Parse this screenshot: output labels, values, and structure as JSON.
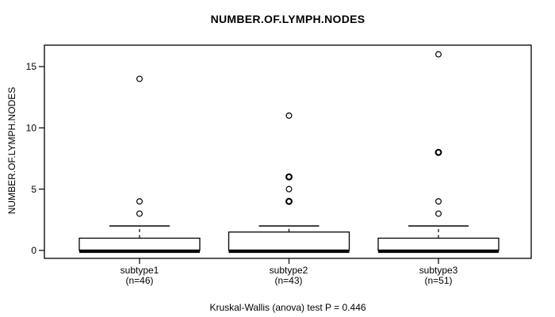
{
  "chart_data": {
    "type": "boxplot",
    "title": "NUMBER.OF.LYMPH.NODES",
    "ylabel": "NUMBER.OF.LYMPH.NODES",
    "caption": "Kruskal-Wallis (anova) test P = 0.446",
    "yticks": [
      0,
      5,
      10,
      15
    ],
    "ylim": [
      -0.6,
      16.7
    ],
    "grid": false,
    "legend": "none",
    "groups": [
      {
        "label": "subtype1",
        "n_label": "(n=46)",
        "n": 46,
        "stats": {
          "min": 0,
          "q1": 0,
          "median": 0,
          "q3": 1,
          "whisker_high": 2
        },
        "outliers": [
          {
            "value": 3
          },
          {
            "value": 4
          },
          {
            "value": 14
          }
        ]
      },
      {
        "label": "subtype2",
        "n_label": "(n=43)",
        "n": 43,
        "stats": {
          "min": 0,
          "q1": 0,
          "median": 0,
          "q3": 1.5,
          "whisker_high": 2
        },
        "outliers": [
          {
            "value": 4,
            "bold": true
          },
          {
            "value": 5
          },
          {
            "value": 6,
            "bold": true
          },
          {
            "value": 11
          }
        ]
      },
      {
        "label": "subtype3",
        "n_label": "(n=51)",
        "n": 51,
        "stats": {
          "min": 0,
          "q1": 0,
          "median": 0,
          "q3": 1,
          "whisker_high": 2
        },
        "outliers": [
          {
            "value": 3
          },
          {
            "value": 4
          },
          {
            "value": 8,
            "bold": true
          },
          {
            "value": 16
          }
        ]
      }
    ],
    "colors": {
      "stroke": "#000000",
      "box_fill": "#ffffff",
      "background": "#ffffff",
      "text": "#000000"
    }
  }
}
